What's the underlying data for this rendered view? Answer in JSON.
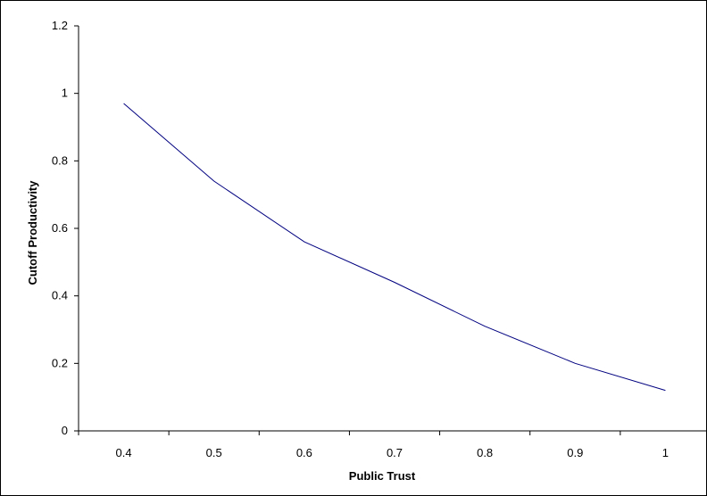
{
  "chart_data": {
    "type": "line",
    "title": "",
    "xlabel": "Public Trust",
    "ylabel": "Cutoff Productivity",
    "categories": [
      "0.4",
      "0.5",
      "0.6",
      "0.7",
      "0.8",
      "0.9",
      "1"
    ],
    "series": [
      {
        "values": [
          0.97,
          0.74,
          0.56,
          0.44,
          0.31,
          0.2,
          0.12
        ]
      }
    ],
    "ylim": [
      0,
      1.2
    ],
    "yticks": [
      "0",
      "0.2",
      "0.4",
      "0.6",
      "0.8",
      "1",
      "1.2"
    ],
    "grid": false,
    "legend": "none",
    "line_color": "#000080",
    "axis_color": "#000000"
  }
}
